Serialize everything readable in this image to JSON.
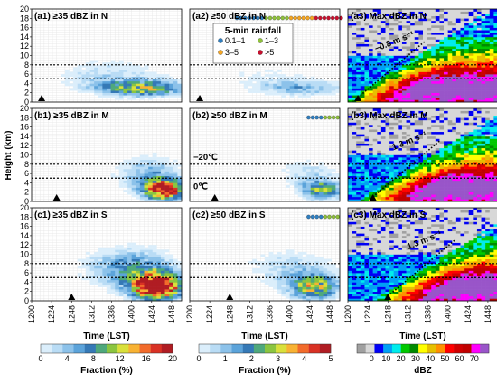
{
  "chart_data": {
    "type": "heatmap",
    "panels": [
      {
        "id": "a1",
        "title": "(a1) ≥35 dBZ in N",
        "scale": "fraction20",
        "trigger_time": "12:12"
      },
      {
        "id": "a2",
        "title": "(a2) ≥50 dBZ in N",
        "scale": "fraction5",
        "trigger_time": "12:12"
      },
      {
        "id": "a3",
        "title": "(a3) Max dBZ in N",
        "scale": "dbz",
        "trigger_time": "12:12",
        "slope_label": "−0.8 m s⁻¹"
      },
      {
        "id": "b1",
        "title": "(b1) ≥35 dBZ in M",
        "scale": "fraction20",
        "trigger_time": "12:30"
      },
      {
        "id": "b2",
        "title": "(b2) ≥50 dBZ in M",
        "scale": "fraction5",
        "trigger_time": "12:30"
      },
      {
        "id": "b3",
        "title": "(b3) Max dBZ in M",
        "scale": "dbz",
        "trigger_time": "12:30",
        "slope_label": "1.3 m s⁻¹"
      },
      {
        "id": "c1",
        "title": "(c1) ≥35 dBZ in S",
        "scale": "fraction20",
        "trigger_time": "12:48"
      },
      {
        "id": "c2",
        "title": "(c2) ≥50 dBZ in S",
        "scale": "fraction5",
        "trigger_time": "12:48"
      },
      {
        "id": "c3",
        "title": "(c3) Max dBZ in S",
        "scale": "dbz",
        "trigger_time": "12:48",
        "slope_label": "1.3 m s⁻¹"
      }
    ],
    "ylabel": "Height (km)",
    "xlabel": "Time (LST)",
    "y_ticks": [
      0,
      2,
      4,
      6,
      8,
      10,
      12,
      14,
      16,
      18,
      20
    ],
    "ylim": [
      0,
      20
    ],
    "x_ticks": [
      "1200",
      "1224",
      "1248",
      "1312",
      "1336",
      "1400",
      "1424",
      "1448"
    ],
    "x_tick_minutes": [
      0,
      24,
      48,
      72,
      96,
      120,
      144,
      168
    ],
    "xlim_minutes": [
      0,
      180
    ],
    "isotherm_0C_km": 5,
    "isotherm_minus20C_km": 8,
    "isotherm_labels": {
      "zero": "0℃",
      "minus20": "−20℃"
    },
    "rainfall_legend": {
      "title": "5-min rainfall",
      "items": [
        {
          "label": "0.1–1",
          "color": "#2f7fc1"
        },
        {
          "label": "1–3",
          "color": "#8fc13c"
        },
        {
          "label": "3–5",
          "color": "#f5a623"
        },
        {
          "label": ">5",
          "color": "#c8102e"
        }
      ]
    },
    "colorbars": [
      {
        "title": "Fraction (%)",
        "ticks": [
          "0",
          "4",
          "8",
          "12",
          "16",
          "20"
        ],
        "colors": [
          "#dbeefb",
          "#b9dcf5",
          "#8cc2ea",
          "#5ba3da",
          "#3579b6",
          "#4fa87c",
          "#8bc540",
          "#d9e03b",
          "#f8b233",
          "#f26b2b",
          "#d93124",
          "#b01c23"
        ]
      },
      {
        "title": "Fraction (%)",
        "ticks": [
          "0",
          "1",
          "2",
          "3",
          "4",
          "5"
        ],
        "colors": [
          "#dbeefb",
          "#b9dcf5",
          "#8cc2ea",
          "#5ba3da",
          "#3579b6",
          "#4fa87c",
          "#8bc540",
          "#d9e03b",
          "#f8b233",
          "#f26b2b",
          "#d93124",
          "#b01c23"
        ]
      },
      {
        "title": "dBZ",
        "ticks": [
          "0",
          "10",
          "20",
          "30",
          "40",
          "50",
          "60",
          "70"
        ],
        "colors": [
          "#a0a0a0",
          "#d8d8d8",
          "#0000f5",
          "#00a0f5",
          "#00ecec",
          "#00c800",
          "#008a00",
          "#ffff00",
          "#e6c000",
          "#ff9000",
          "#ff0000",
          "#d00000",
          "#c00000",
          "#ff00ff",
          "#9955c9"
        ]
      }
    ]
  }
}
